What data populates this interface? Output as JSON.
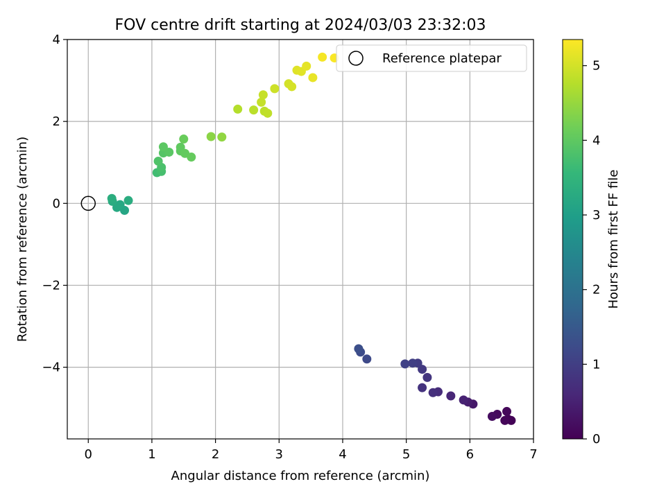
{
  "chart_data": {
    "type": "scatter",
    "title": "FOV centre drift starting at 2024/03/03 23:32:03",
    "xlabel": "Angular distance from reference (arcmin)",
    "ylabel": "Rotation from reference (arcmin)",
    "xlim": [
      -0.33,
      7.0
    ],
    "ylim": [
      -5.75,
      4.0
    ],
    "x_ticks": [
      0,
      1,
      2,
      3,
      4,
      5,
      6,
      7
    ],
    "x_tick_labels": [
      "0",
      "1",
      "2",
      "3",
      "4",
      "5",
      "6",
      "7"
    ],
    "y_ticks": [
      -4,
      -2,
      0,
      2,
      4
    ],
    "y_tick_labels": [
      "−4",
      "−2",
      "0",
      "2",
      "4"
    ],
    "grid": true,
    "legend": {
      "placement": "top-right",
      "entries": [
        "Reference platepar"
      ]
    },
    "reference_point": {
      "x": 0,
      "y": 0,
      "label": "Reference platepar"
    },
    "colorbar": {
      "label": "Hours from first FF file",
      "range": [
        0,
        5.35
      ],
      "ticks": [
        0,
        1,
        2,
        3,
        4,
        5
      ],
      "tick_labels": [
        "0",
        "1",
        "2",
        "3",
        "4",
        "5"
      ],
      "colormap": "viridis"
    },
    "colors": {
      "viridis": [
        "#440154",
        "#482878",
        "#3e4989",
        "#31688e",
        "#26828e",
        "#1f9e89",
        "#35b779",
        "#6ece58",
        "#b5de2b",
        "#fde725"
      ],
      "reference_marker": "#000000",
      "grid": "#b0b0b0"
    },
    "points": [
      {
        "x": 6.65,
        "y": -5.3,
        "hours": 0.03
      },
      {
        "x": 6.6,
        "y": -5.27,
        "hours": 0.05
      },
      {
        "x": 6.55,
        "y": -5.3,
        "hours": 0.08
      },
      {
        "x": 6.58,
        "y": -5.08,
        "hours": 0.1
      },
      {
        "x": 6.43,
        "y": -5.15,
        "hours": 0.13
      },
      {
        "x": 6.35,
        "y": -5.2,
        "hours": 0.18
      },
      {
        "x": 6.05,
        "y": -4.9,
        "hours": 0.35
      },
      {
        "x": 5.97,
        "y": -4.85,
        "hours": 0.42
      },
      {
        "x": 5.9,
        "y": -4.8,
        "hours": 0.5
      },
      {
        "x": 5.7,
        "y": -4.7,
        "hours": 0.58
      },
      {
        "x": 5.5,
        "y": -4.6,
        "hours": 0.68
      },
      {
        "x": 5.42,
        "y": -4.62,
        "hours": 0.73
      },
      {
        "x": 5.25,
        "y": -4.5,
        "hours": 0.8
      },
      {
        "x": 5.33,
        "y": -4.25,
        "hours": 0.85
      },
      {
        "x": 5.25,
        "y": -4.05,
        "hours": 0.9
      },
      {
        "x": 5.18,
        "y": -3.9,
        "hours": 0.95
      },
      {
        "x": 5.1,
        "y": -3.9,
        "hours": 1.0
      },
      {
        "x": 4.98,
        "y": -3.92,
        "hours": 1.05
      },
      {
        "x": 4.38,
        "y": -3.8,
        "hours": 1.2
      },
      {
        "x": 4.28,
        "y": -3.63,
        "hours": 1.25
      },
      {
        "x": 4.25,
        "y": -3.55,
        "hours": 1.3
      },
      {
        "x": 0.57,
        "y": -0.17,
        "hours": 3.15
      },
      {
        "x": 0.5,
        "y": -0.03,
        "hours": 3.2
      },
      {
        "x": 0.45,
        "y": -0.1,
        "hours": 3.22
      },
      {
        "x": 0.38,
        "y": 0.05,
        "hours": 3.27
      },
      {
        "x": 0.63,
        "y": 0.07,
        "hours": 3.3
      },
      {
        "x": 0.37,
        "y": 0.12,
        "hours": 3.33
      },
      {
        "x": 1.08,
        "y": 0.75,
        "hours": 3.7
      },
      {
        "x": 1.15,
        "y": 0.78,
        "hours": 3.75
      },
      {
        "x": 1.15,
        "y": 0.88,
        "hours": 3.8
      },
      {
        "x": 1.1,
        "y": 1.03,
        "hours": 3.85
      },
      {
        "x": 1.18,
        "y": 1.23,
        "hours": 3.9
      },
      {
        "x": 1.27,
        "y": 1.25,
        "hours": 3.95
      },
      {
        "x": 1.18,
        "y": 1.38,
        "hours": 3.97
      },
      {
        "x": 1.45,
        "y": 1.28,
        "hours": 4.0
      },
      {
        "x": 1.45,
        "y": 1.37,
        "hours": 4.02
      },
      {
        "x": 1.52,
        "y": 1.22,
        "hours": 4.05
      },
      {
        "x": 1.62,
        "y": 1.13,
        "hours": 4.07
      },
      {
        "x": 1.5,
        "y": 1.57,
        "hours": 4.1
      },
      {
        "x": 1.93,
        "y": 1.63,
        "hours": 4.4
      },
      {
        "x": 2.1,
        "y": 1.62,
        "hours": 4.45
      },
      {
        "x": 2.35,
        "y": 2.3,
        "hours": 4.75
      },
      {
        "x": 2.6,
        "y": 2.28,
        "hours": 4.8
      },
      {
        "x": 2.77,
        "y": 2.25,
        "hours": 4.82
      },
      {
        "x": 2.82,
        "y": 2.2,
        "hours": 4.85
      },
      {
        "x": 2.72,
        "y": 2.47,
        "hours": 4.88
      },
      {
        "x": 2.75,
        "y": 2.65,
        "hours": 4.9
      },
      {
        "x": 2.93,
        "y": 2.8,
        "hours": 4.95
      },
      {
        "x": 3.15,
        "y": 2.92,
        "hours": 5.0
      },
      {
        "x": 3.2,
        "y": 2.85,
        "hours": 5.02
      },
      {
        "x": 3.28,
        "y": 3.25,
        "hours": 5.1
      },
      {
        "x": 3.35,
        "y": 3.22,
        "hours": 5.12
      },
      {
        "x": 3.43,
        "y": 3.35,
        "hours": 5.15
      },
      {
        "x": 3.53,
        "y": 3.07,
        "hours": 5.18
      },
      {
        "x": 3.68,
        "y": 3.57,
        "hours": 5.28
      },
      {
        "x": 3.87,
        "y": 3.55,
        "hours": 5.32
      }
    ]
  }
}
